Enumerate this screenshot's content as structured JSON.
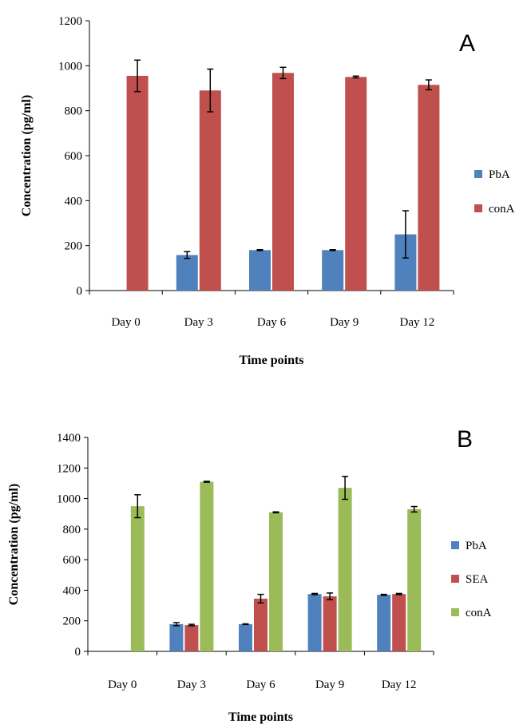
{
  "chart_data": [
    {
      "type": "bar",
      "panel_label": "A",
      "xlabel": "Time points",
      "ylabel": "Concentration (pg/ml)",
      "ylim": [
        0,
        1200
      ],
      "yticks": [
        0,
        200,
        400,
        600,
        800,
        1000,
        1200
      ],
      "categories": [
        "Day 0",
        "Day 3",
        "Day 6",
        "Day 9",
        "Day 12"
      ],
      "legend_position": "right",
      "grid": false,
      "series": [
        {
          "name": "PbA",
          "color": "#4F81BD",
          "values": [
            null,
            158,
            180,
            180,
            250
          ],
          "errors": [
            null,
            15,
            2,
            2,
            105
          ]
        },
        {
          "name": "conA",
          "color": "#C0504D",
          "values": [
            955,
            890,
            968,
            950,
            915
          ],
          "errors": [
            70,
            95,
            25,
            4,
            22
          ]
        }
      ]
    },
    {
      "type": "bar",
      "panel_label": "B",
      "xlabel": "Time points",
      "ylabel": "Concentration (pg/ml)",
      "ylim": [
        0,
        1400
      ],
      "yticks": [
        0,
        200,
        400,
        600,
        800,
        1000,
        1200,
        1400
      ],
      "categories": [
        "Day 0",
        "Day 3",
        "Day 6",
        "Day 9",
        "Day 12"
      ],
      "legend_position": "right",
      "grid": false,
      "series": [
        {
          "name": "PbA",
          "color": "#4F81BD",
          "values": [
            null,
            178,
            178,
            375,
            370
          ],
          "errors": [
            null,
            10,
            2,
            4,
            3
          ]
        },
        {
          "name": "SEA",
          "color": "#C0504D",
          "values": [
            null,
            172,
            345,
            360,
            375
          ],
          "errors": [
            null,
            5,
            28,
            22,
            4
          ]
        },
        {
          "name": "conA",
          "color": "#9BBB59",
          "values": [
            950,
            1110,
            910,
            1070,
            930
          ],
          "errors": [
            75,
            3,
            3,
            75,
            18
          ]
        }
      ]
    }
  ]
}
